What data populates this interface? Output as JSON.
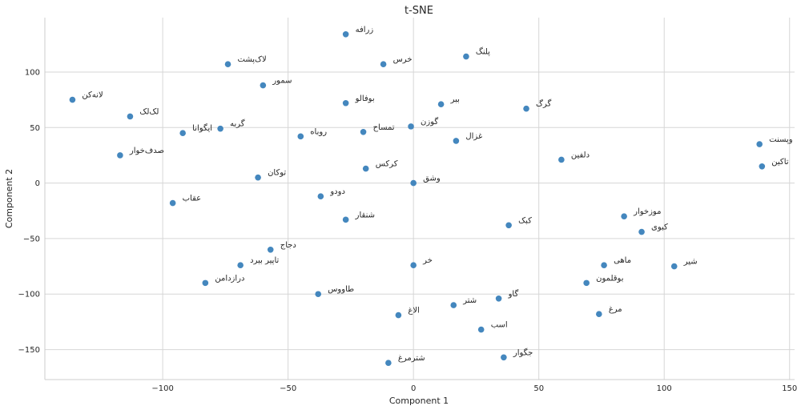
{
  "chart_data": {
    "type": "scatter",
    "title": "t-SNE",
    "xlabel": "Component 1",
    "ylabel": "Component 2",
    "xlim": [
      -147,
      152
    ],
    "ylim": [
      -177,
      149
    ],
    "xticks": [
      -100,
      -50,
      0,
      50,
      100,
      150
    ],
    "yticks": [
      -150,
      -100,
      -50,
      0,
      50,
      100
    ],
    "xtick_labels": [
      "−100",
      "−50",
      "0",
      "50",
      "100",
      "150"
    ],
    "ytick_labels": [
      "−150",
      "−100",
      "−50",
      "0",
      "50",
      "100"
    ],
    "grid": true,
    "point_color": "#3a81ba",
    "points": [
      {
        "label": "زرافه",
        "x": -27,
        "y": 134
      },
      {
        "label": "پلنگ",
        "x": 21,
        "y": 114
      },
      {
        "label": "لاک‌پشت",
        "x": -74,
        "y": 107
      },
      {
        "label": "خرس",
        "x": -12,
        "y": 107
      },
      {
        "label": "سمور",
        "x": -60,
        "y": 88
      },
      {
        "label": "لانه‌کن",
        "x": -136,
        "y": 75
      },
      {
        "label": "بوفالو",
        "x": -27,
        "y": 72
      },
      {
        "label": "ببر",
        "x": 11,
        "y": 71
      },
      {
        "label": "گرگ",
        "x": 45,
        "y": 67
      },
      {
        "label": "لک‌لک",
        "x": -113,
        "y": 60
      },
      {
        "label": "گربه",
        "x": -77,
        "y": 49
      },
      {
        "label": "گوزن",
        "x": -1,
        "y": 51
      },
      {
        "label": "تمساح",
        "x": -20,
        "y": 46
      },
      {
        "label": "ایگوانا",
        "x": -92,
        "y": 45
      },
      {
        "label": "روباه",
        "x": -45,
        "y": 42
      },
      {
        "label": "غزال",
        "x": 17,
        "y": 38
      },
      {
        "label": "وپسنت",
        "x": 138,
        "y": 35
      },
      {
        "label": "صدف‌خوار",
        "x": -117,
        "y": 25
      },
      {
        "label": "دلفین",
        "x": 59,
        "y": 21
      },
      {
        "label": "تاکین",
        "x": 139,
        "y": 15
      },
      {
        "label": "کرکس",
        "x": -19,
        "y": 13
      },
      {
        "label": "توکان",
        "x": -62,
        "y": 5
      },
      {
        "label": "وشق",
        "x": 0,
        "y": 0
      },
      {
        "label": "دودو",
        "x": -37,
        "y": -12
      },
      {
        "label": "عقاب",
        "x": -96,
        "y": -18
      },
      {
        "label": "موزخوار",
        "x": 84,
        "y": -30
      },
      {
        "label": "شنقار",
        "x": -27,
        "y": -33
      },
      {
        "label": "کبک",
        "x": 38,
        "y": -38
      },
      {
        "label": "کبوی",
        "x": 91,
        "y": -44
      },
      {
        "label": "دجاج",
        "x": -57,
        "y": -60
      },
      {
        "label": "تاپیر بیرد",
        "x": -69,
        "y": -74
      },
      {
        "label": "خر",
        "x": 0,
        "y": -74
      },
      {
        "label": "ماهی",
        "x": 76,
        "y": -74
      },
      {
        "label": "شیر",
        "x": 104,
        "y": -75
      },
      {
        "label": "درازدامن",
        "x": -83,
        "y": -90
      },
      {
        "label": "بوقلمون",
        "x": 69,
        "y": -90
      },
      {
        "label": "طاووس",
        "x": -38,
        "y": -100
      },
      {
        "label": "گاو",
        "x": 34,
        "y": -104
      },
      {
        "label": "شتر",
        "x": 16,
        "y": -110
      },
      {
        "label": "مرغ",
        "x": 74,
        "y": -118
      },
      {
        "label": "الاغ",
        "x": -6,
        "y": -119
      },
      {
        "label": "اسب",
        "x": 27,
        "y": -132
      },
      {
        "label": "جگوار",
        "x": 36,
        "y": -157
      },
      {
        "label": "شترمرغ",
        "x": -10,
        "y": -162
      }
    ]
  }
}
